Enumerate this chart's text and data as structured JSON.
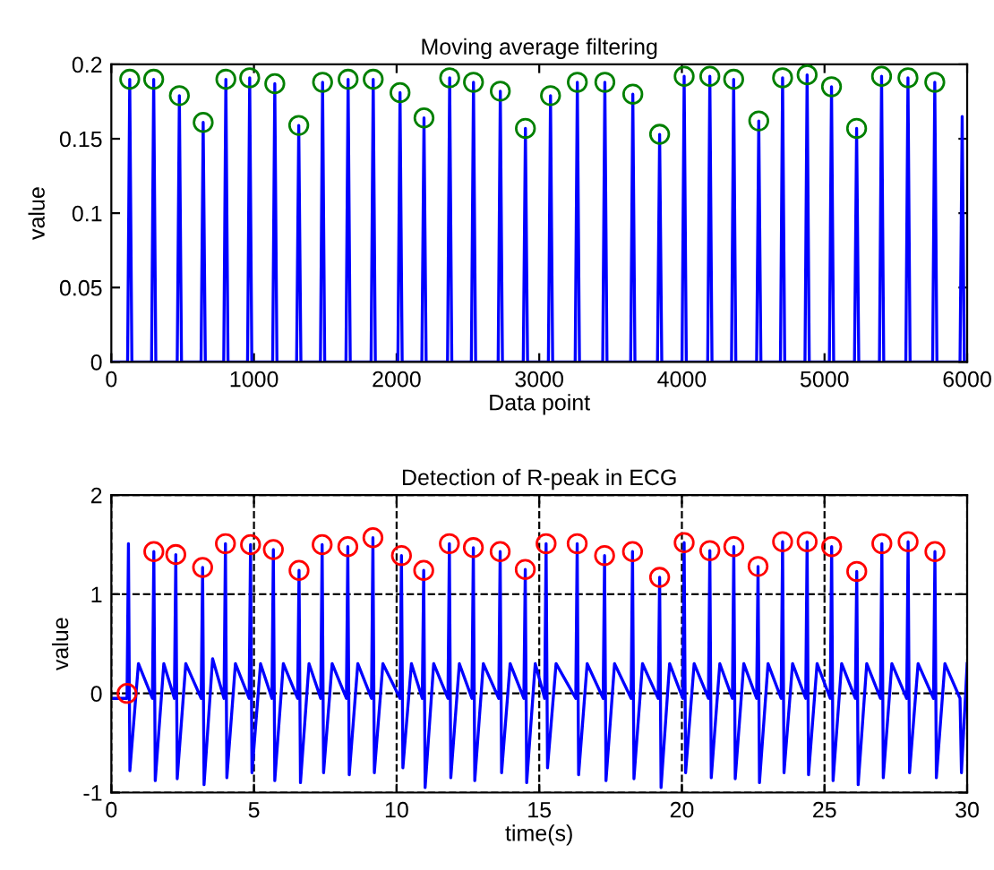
{
  "chart_data": [
    {
      "type": "line",
      "title": "Moving average filtering",
      "xlabel": "Data point",
      "ylabel": "value",
      "xlim": [
        0,
        6000
      ],
      "xticks": [
        0,
        1000,
        2000,
        3000,
        4000,
        5000,
        6000
      ],
      "ylim": [
        0,
        0.2
      ],
      "yticks": [
        0,
        0.05,
        0.1,
        0.15,
        0.2
      ],
      "grid": false,
      "series": [
        {
          "color": "#0000ff",
          "line_style": "solid",
          "marker": "none",
          "x": [
            0,
            114,
            129,
            144,
            282,
            297,
            312,
            462,
            477,
            492,
            629,
            644,
            659,
            788,
            803,
            818,
            955,
            970,
            985,
            1131,
            1146,
            1161,
            1299,
            1314,
            1329,
            1466,
            1481,
            1496,
            1645,
            1660,
            1675,
            1821,
            1836,
            1851,
            2009,
            2024,
            2039,
            2177,
            2192,
            2207,
            2357,
            2372,
            2387,
            2524,
            2539,
            2554,
            2712,
            2727,
            2742,
            2888,
            2903,
            2918,
            3064,
            3079,
            3094,
            3252,
            3267,
            3282,
            3445,
            3460,
            3475,
            3641,
            3656,
            3671,
            3829,
            3844,
            3859,
            4001,
            4016,
            4031,
            4181,
            4196,
            4211,
            4348,
            4363,
            4378,
            4524,
            4539,
            4554,
            4691,
            4706,
            4721,
            4863,
            4878,
            4893,
            5034,
            5049,
            5064,
            5210,
            5225,
            5240,
            5385,
            5400,
            5415,
            5570,
            5585,
            5600,
            5758,
            5773,
            5788,
            5950,
            5965,
            5980,
            6000
          ],
          "values": [
            0,
            0,
            0.19,
            0,
            0,
            0.19,
            0,
            0,
            0.179,
            0,
            0,
            0.161,
            0,
            0,
            0.19,
            0,
            0,
            0.191,
            0,
            0,
            0.187,
            0,
            0,
            0.159,
            0,
            0,
            0.188,
            0,
            0,
            0.19,
            0,
            0,
            0.19,
            0,
            0,
            0.181,
            0,
            0,
            0.164,
            0,
            0,
            0.191,
            0,
            0,
            0.188,
            0,
            0,
            0.182,
            0,
            0,
            0.157,
            0,
            0,
            0.179,
            0,
            0,
            0.188,
            0,
            0,
            0.188,
            0,
            0,
            0.18,
            0,
            0,
            0.153,
            0,
            0,
            0.192,
            0,
            0,
            0.192,
            0,
            0,
            0.19,
            0,
            0,
            0.162,
            0,
            0,
            0.191,
            0,
            0,
            0.193,
            0,
            0,
            0.185,
            0,
            0,
            0.157,
            0,
            0,
            0.192,
            0,
            0,
            0.191,
            0,
            0,
            0.188,
            0,
            0,
            0.165,
            0,
            0
          ]
        },
        {
          "type": "scatter",
          "color": "#008000",
          "marker": "circle",
          "x": [
            129,
            297,
            477,
            644,
            803,
            970,
            1146,
            1314,
            1481,
            1660,
            1836,
            2024,
            2192,
            2372,
            2539,
            2727,
            2903,
            3079,
            3267,
            3460,
            3656,
            3844,
            4016,
            4196,
            4363,
            4539,
            4706,
            4878,
            5049,
            5225,
            5400,
            5585,
            5773
          ],
          "values": [
            0.19,
            0.19,
            0.179,
            0.161,
            0.19,
            0.191,
            0.187,
            0.159,
            0.188,
            0.19,
            0.19,
            0.181,
            0.164,
            0.191,
            0.188,
            0.182,
            0.157,
            0.179,
            0.188,
            0.188,
            0.18,
            0.153,
            0.192,
            0.192,
            0.19,
            0.162,
            0.191,
            0.193,
            0.185,
            0.157,
            0.192,
            0.191,
            0.188
          ]
        }
      ]
    },
    {
      "type": "line",
      "title": "Detection of R-peak in ECG",
      "xlabel": "time(s)",
      "ylabel": "value",
      "xlim": [
        0,
        30
      ],
      "xticks": [
        0,
        5,
        10,
        15,
        20,
        25,
        30
      ],
      "ylim": [
        -1,
        2
      ],
      "yticks": [
        -1,
        0,
        1,
        2
      ],
      "grid": true,
      "series": [
        {
          "color": "#0000ff",
          "line_style": "solid",
          "marker": "none",
          "x": [
            0,
            0.55,
            0.6,
            0.65,
            0.95,
            1.44,
            1.49,
            1.54,
            1.84,
            2.21,
            2.26,
            2.31,
            2.61,
            3.15,
            3.2,
            3.25,
            3.55,
            3.95,
            4.0,
            4.05,
            4.35,
            4.83,
            4.88,
            4.93,
            5.23,
            5.63,
            5.68,
            5.73,
            6.03,
            6.53,
            6.58,
            6.63,
            6.93,
            7.34,
            7.39,
            7.44,
            7.74,
            8.24,
            8.29,
            8.34,
            8.64,
            9.12,
            9.17,
            9.22,
            9.52,
            10.12,
            10.17,
            10.22,
            10.52,
            10.9,
            10.95,
            11.0,
            11.3,
            11.8,
            11.85,
            11.9,
            12.2,
            12.64,
            12.69,
            12.74,
            13.04,
            13.58,
            13.63,
            13.68,
            13.98,
            14.46,
            14.51,
            14.56,
            14.86,
            15.19,
            15.24,
            15.29,
            15.59,
            16.28,
            16.33,
            16.38,
            16.68,
            17.24,
            17.29,
            17.34,
            17.64,
            18.22,
            18.27,
            18.32,
            18.62,
            19.17,
            19.22,
            19.27,
            19.57,
            20.03,
            20.08,
            20.13,
            20.43,
            20.93,
            20.98,
            21.03,
            21.33,
            21.77,
            21.82,
            21.87,
            22.17,
            22.62,
            22.67,
            22.72,
            23.02,
            23.48,
            23.53,
            23.58,
            23.88,
            24.34,
            24.39,
            24.44,
            24.74,
            25.2,
            25.25,
            25.3,
            25.6,
            26.08,
            26.13,
            26.18,
            26.48,
            26.96,
            27.01,
            27.06,
            27.36,
            27.88,
            27.93,
            27.98,
            28.28,
            28.82,
            28.87,
            28.92,
            29.22,
            29.75,
            29.8,
            30
          ],
          "values": [
            -0.05,
            -0.05,
            1.51,
            -0.78,
            0.3,
            -0.05,
            1.43,
            -0.88,
            0.3,
            -0.05,
            1.4,
            -0.86,
            0.3,
            -0.05,
            1.27,
            -0.92,
            0.35,
            -0.05,
            1.51,
            -0.85,
            0.3,
            -0.05,
            1.5,
            -0.8,
            0.3,
            -0.05,
            1.45,
            -0.88,
            0.3,
            -0.05,
            1.24,
            -0.9,
            0.3,
            -0.05,
            1.5,
            -0.8,
            0.3,
            -0.05,
            1.48,
            -0.82,
            0.3,
            -0.05,
            1.57,
            -0.8,
            0.3,
            -0.05,
            1.39,
            -0.75,
            0.3,
            -0.05,
            1.24,
            -0.95,
            0.3,
            -0.05,
            1.51,
            -0.85,
            0.3,
            -0.05,
            1.47,
            -0.88,
            0.3,
            -0.05,
            1.43,
            -0.8,
            0.3,
            -0.05,
            1.25,
            -0.9,
            0.3,
            -0.05,
            1.51,
            -0.75,
            0.3,
            -0.05,
            1.51,
            -0.82,
            0.3,
            -0.05,
            1.39,
            -0.88,
            0.3,
            -0.05,
            1.43,
            -0.86,
            0.3,
            -0.05,
            1.17,
            -0.95,
            0.3,
            -0.05,
            1.52,
            -0.8,
            0.3,
            -0.05,
            1.44,
            -0.85,
            0.3,
            -0.05,
            1.48,
            -0.86,
            0.3,
            -0.05,
            1.28,
            -0.9,
            0.3,
            -0.05,
            1.53,
            -0.8,
            0.3,
            -0.05,
            1.53,
            -0.82,
            0.3,
            -0.05,
            1.48,
            -0.88,
            0.3,
            -0.05,
            1.23,
            -0.92,
            0.3,
            -0.05,
            1.51,
            -0.85,
            0.3,
            -0.05,
            1.53,
            -0.8,
            0.3,
            -0.05,
            1.43,
            -0.85,
            0.3,
            -0.05,
            -0.8,
            0.3
          ]
        },
        {
          "type": "scatter",
          "color": "#ff0000",
          "marker": "circle",
          "x": [
            0.55,
            1.49,
            2.26,
            3.2,
            4.0,
            4.88,
            5.68,
            6.58,
            7.39,
            8.29,
            9.17,
            10.17,
            10.95,
            11.85,
            12.69,
            13.63,
            14.51,
            15.24,
            16.33,
            17.29,
            18.27,
            19.22,
            20.08,
            20.98,
            21.82,
            22.67,
            23.53,
            24.39,
            25.25,
            26.13,
            27.01,
            27.93,
            28.87
          ],
          "values": [
            0,
            1.43,
            1.4,
            1.27,
            1.51,
            1.5,
            1.45,
            1.24,
            1.5,
            1.48,
            1.57,
            1.39,
            1.24,
            1.51,
            1.47,
            1.43,
            1.25,
            1.51,
            1.51,
            1.39,
            1.43,
            1.17,
            1.52,
            1.44,
            1.48,
            1.28,
            1.53,
            1.53,
            1.48,
            1.23,
            1.51,
            1.53,
            1.43
          ]
        }
      ]
    }
  ]
}
